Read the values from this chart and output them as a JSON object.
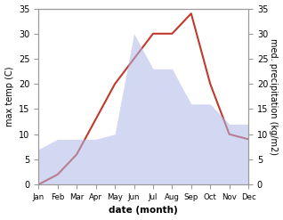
{
  "months": [
    "Jan",
    "Feb",
    "Mar",
    "Apr",
    "May",
    "Jun",
    "Jul",
    "Aug",
    "Sep",
    "Oct",
    "Nov",
    "Dec"
  ],
  "temp": [
    0,
    2,
    6,
    13,
    20,
    25,
    30,
    30,
    34,
    20,
    10,
    9
  ],
  "precip": [
    7,
    9,
    9,
    9,
    10,
    30,
    23,
    23,
    16,
    16,
    12,
    12
  ],
  "temp_color": "#c0392b",
  "precip_color": "#b0b8e8",
  "precip_alpha": 0.55,
  "ylim": [
    0,
    35
  ],
  "xlabel": "date (month)",
  "ylabel_left": "max temp (C)",
  "ylabel_right": "med. precipitation (kg/m2)",
  "bg_color": "#ffffff",
  "axes_color": "#999999",
  "yticks": [
    0,
    5,
    10,
    15,
    20,
    25,
    30,
    35
  ]
}
